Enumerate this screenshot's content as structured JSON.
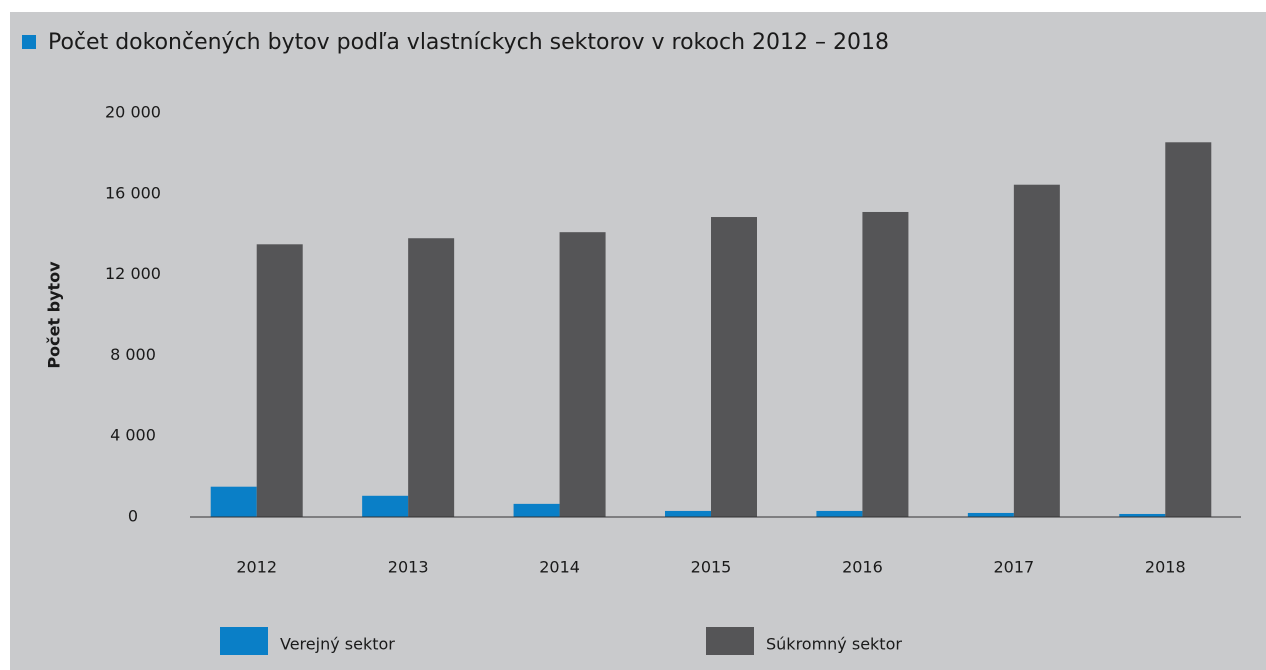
{
  "chart_data": {
    "type": "bar",
    "title": "Počet dokončených bytov podľa vlastníckych sektorov v rokoch 2012 – 2018",
    "y_label": "Počet bytov",
    "categories": [
      "2012",
      "2013",
      "2014",
      "2015",
      "2016",
      "2017",
      "2018"
    ],
    "series": [
      {
        "name": "Verejný sektor",
        "color": "#0a7fc7",
        "values": [
          1500,
          1050,
          650,
          300,
          300,
          200,
          150
        ]
      },
      {
        "name": "Súkromný sektor",
        "color": "#555557",
        "values": [
          13500,
          13800,
          14100,
          14850,
          15100,
          16450,
          18550
        ]
      }
    ],
    "ylim": [
      0,
      20000
    ],
    "yticks": [
      0,
      {
        "value": 4000,
        "label": "4 000"
      },
      {
        "value": 8000,
        "label": "8 000"
      },
      {
        "value": 12000,
        "label": "12 000"
      },
      {
        "value": 16000,
        "label": "16 000"
      },
      {
        "value": 20000,
        "label": "20 000"
      }
    ],
    "grid": false
  }
}
